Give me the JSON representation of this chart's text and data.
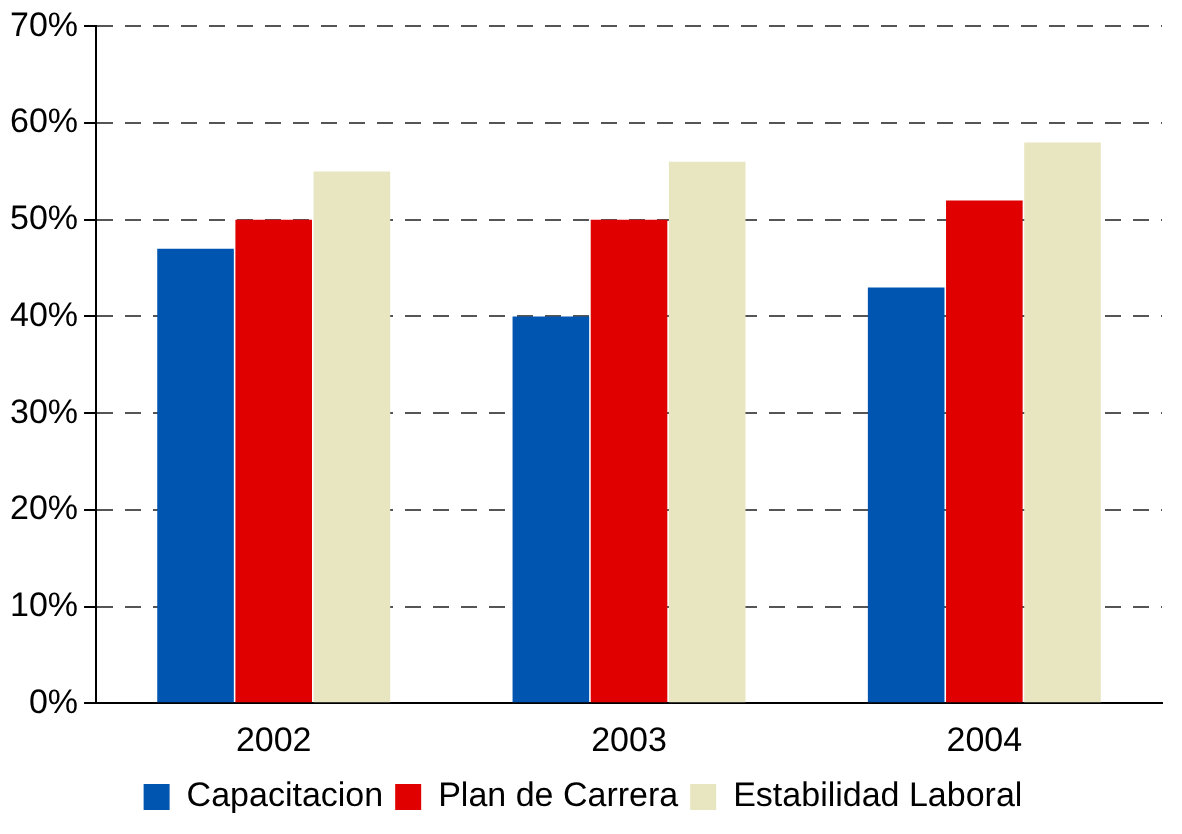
{
  "chart_data": {
    "type": "bar",
    "categories": [
      "2002",
      "2003",
      "2004"
    ],
    "series": [
      {
        "name": "Capacitacion",
        "color": "#0055b0",
        "values": [
          47,
          40,
          43
        ]
      },
      {
        "name": "Plan de Carrera",
        "color": "#e00000",
        "values": [
          50,
          50,
          52
        ]
      },
      {
        "name": "Estabilidad Laboral",
        "color": "#e8e6c0",
        "values": [
          55,
          56,
          58
        ]
      }
    ],
    "ylim": [
      0,
      70
    ],
    "yticks": [
      {
        "value": 0,
        "label": "0%"
      },
      {
        "value": 10,
        "label": "10%"
      },
      {
        "value": 20,
        "label": "20%"
      },
      {
        "value": 30,
        "label": "30%"
      },
      {
        "value": 40,
        "label": "40%"
      },
      {
        "value": 50,
        "label": "50%"
      },
      {
        "value": 60,
        "label": "60%"
      },
      {
        "value": 70,
        "label": "70%"
      }
    ],
    "grid": "y",
    "legend": "bottom"
  }
}
